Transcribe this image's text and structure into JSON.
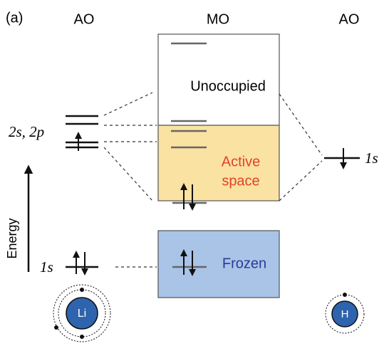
{
  "panel_label": "(a)",
  "columns": {
    "left": "AO",
    "middle": "MO",
    "right": "AO"
  },
  "mo_regions": {
    "unoccupied": "Unoccupied",
    "active": [
      "Active",
      "space"
    ],
    "frozen": "Frozen"
  },
  "li_levels": {
    "valence": "2s, 2p",
    "core": "1s"
  },
  "h_level": "1s",
  "energy_axis": "Energy",
  "atoms": {
    "li": "Li",
    "h": "H"
  }
}
